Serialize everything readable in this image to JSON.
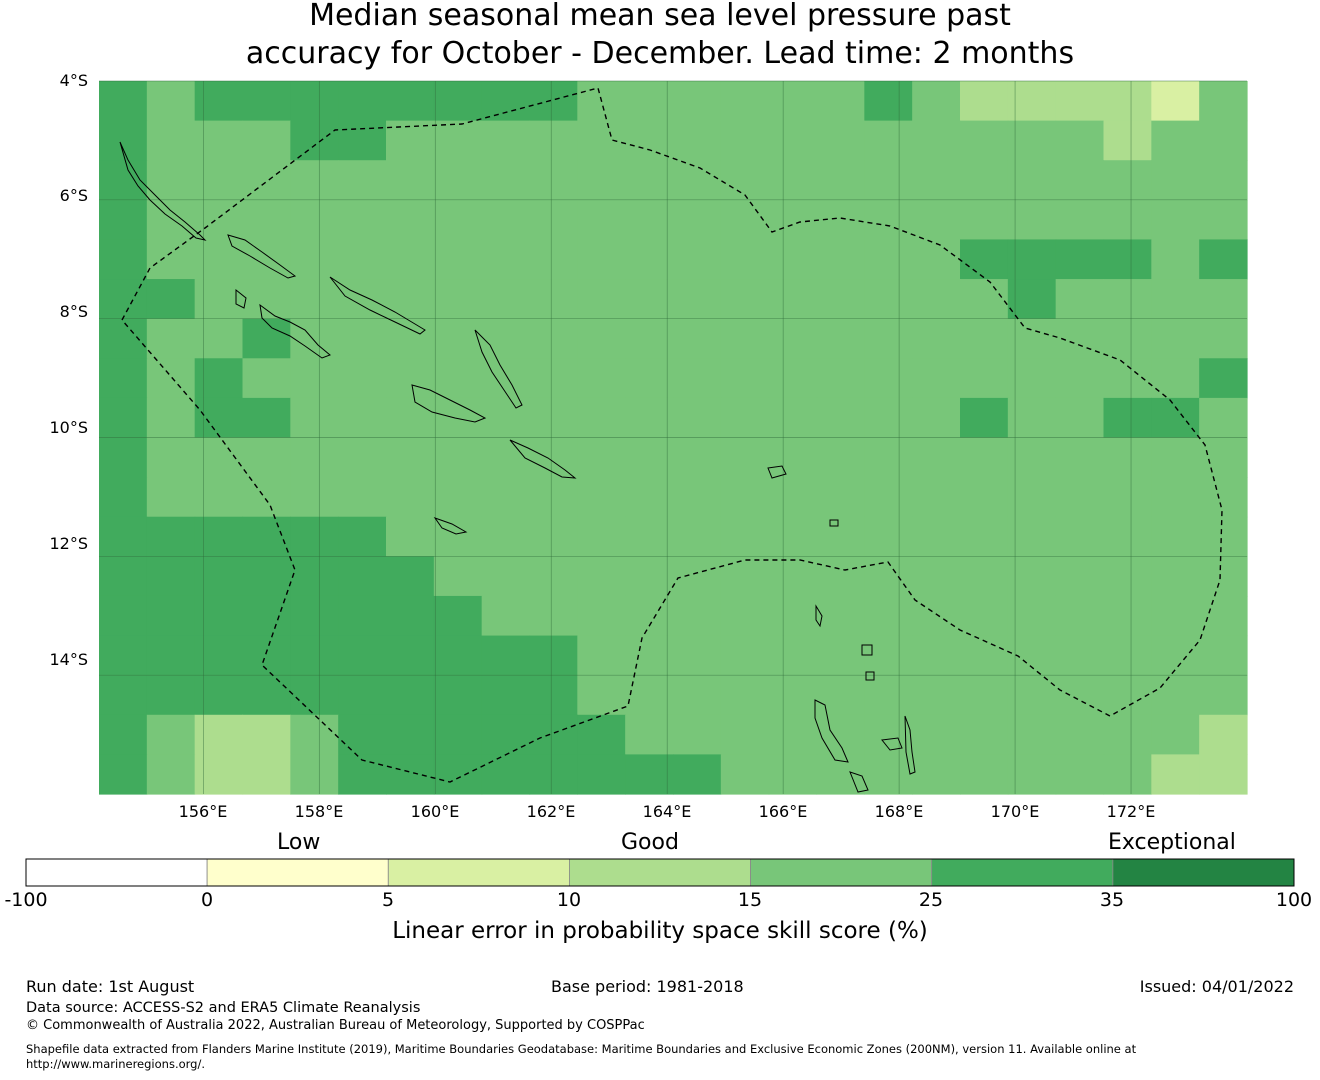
{
  "title": {
    "line1": "Median seasonal mean sea level pressure past",
    "line2": "accuracy for October - December. Lead time: 2 months"
  },
  "map": {
    "lat_range": [
      -16.0,
      -4.0
    ],
    "lon_range": [
      154.2,
      174.0
    ],
    "lat_ticks": [
      {
        "value": -4,
        "label": "4°S"
      },
      {
        "value": -6,
        "label": "6°S"
      },
      {
        "value": -8,
        "label": "8°S"
      },
      {
        "value": -10,
        "label": "10°S"
      },
      {
        "value": -12,
        "label": "12°S"
      },
      {
        "value": -14,
        "label": "14°S"
      }
    ],
    "lon_ticks": [
      {
        "value": 156,
        "label": "156°E"
      },
      {
        "value": 158,
        "label": "158°E"
      },
      {
        "value": 160,
        "label": "160°E"
      },
      {
        "value": 162,
        "label": "162°E"
      },
      {
        "value": 164,
        "label": "164°E"
      },
      {
        "value": 166,
        "label": "166°E"
      },
      {
        "value": 168,
        "label": "168°E"
      },
      {
        "value": 170,
        "label": "170°E"
      },
      {
        "value": 172,
        "label": "172°E"
      }
    ],
    "boundary_style": "dashed",
    "gridlines": true
  },
  "colorbar": {
    "category_labels": [
      {
        "label": "Low",
        "at": 0
      },
      {
        "label": "Good",
        "at": 10
      },
      {
        "label": "Exceptional",
        "at": 35
      }
    ],
    "bins": [
      {
        "from": -100,
        "to": 0,
        "color": "#ffffff"
      },
      {
        "from": 0,
        "to": 5,
        "color": "#ffffcc"
      },
      {
        "from": 5,
        "to": 10,
        "color": "#d9f0a3"
      },
      {
        "from": 10,
        "to": 15,
        "color": "#addd8e"
      },
      {
        "from": 15,
        "to": 25,
        "color": "#78c679"
      },
      {
        "from": 25,
        "to": 35,
        "color": "#41ab5d"
      },
      {
        "from": 35,
        "to": 100,
        "color": "#238443"
      }
    ],
    "tick_labels": [
      "-100",
      "0",
      "5",
      "10",
      "15",
      "25",
      "35",
      "100"
    ],
    "title": "Linear error in probability space skill score (%)"
  },
  "footer": {
    "run_date": "Run date: 1st August",
    "base_period": "Base period: 1981-2018",
    "issued": "Issued: 04/01/2022",
    "data_source": "Data source: ACCESS-S2 and ERA5 Climate Reanalysis",
    "copyright": "© Commonwealth of Australia 2022, Australian Bureau of Meteorology, Supported by COSPPac",
    "shapefile": "Shapefile data extracted from Flanders Marine Institute (2019), Maritime Boundaries Geodatabase: Maritime Boundaries and Exclusive Economic Zones (200NM), version 11. Available online at http://www.marineregions.org/."
  }
}
